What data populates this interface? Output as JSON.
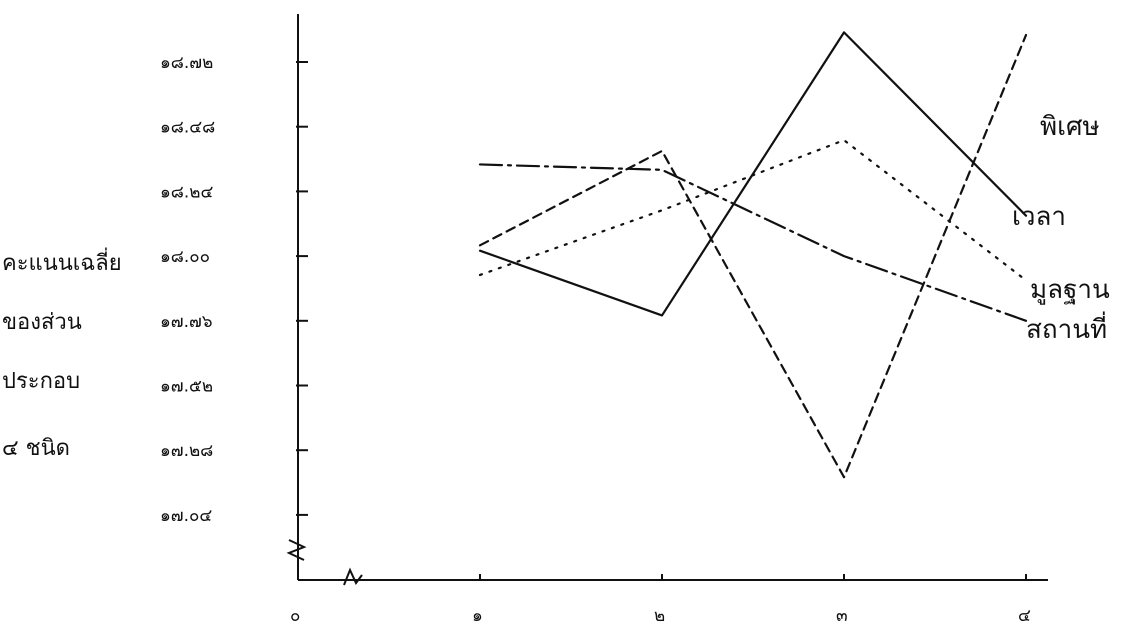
{
  "chart_data": {
    "type": "line",
    "title": "",
    "xlabel": "",
    "ylabel_lines": [
      "คะแนนเฉลี่ย",
      "ของส่วน",
      "ประกอบ",
      "๔ ชนิด"
    ],
    "x": [
      1,
      2,
      3,
      4
    ],
    "xtick_labels": [
      "๐",
      "๑",
      "๒",
      "๓",
      "๔"
    ],
    "xlim": [
      0,
      4
    ],
    "ytick_values": [
      17.04,
      17.28,
      17.52,
      17.76,
      18.0,
      18.24,
      18.48,
      18.72
    ],
    "ytick_labels": [
      "๑๗.๐๔",
      "๑๗.๒๘",
      "๑๗.๕๒",
      "๑๗.๗๖",
      "๑๘.๐๐",
      "๑๘.๒๔",
      "๑๘.๔๘",
      "๑๘.๗๒"
    ],
    "ylim": [
      16.8,
      18.96
    ],
    "grid": false,
    "legend": "inline-right",
    "series": [
      {
        "name": "พิเศษ",
        "style": "dashed",
        "values": [
          18.04,
          18.39,
          17.18,
          18.82
        ]
      },
      {
        "name": "เวลา",
        "style": "solid",
        "values": [
          18.02,
          17.78,
          18.83,
          18.15
        ]
      },
      {
        "name": "มูลฐาน",
        "style": "dotted",
        "values": [
          17.93,
          18.17,
          18.43,
          17.91
        ]
      },
      {
        "name": "สถานที่",
        "style": "dashdot",
        "values": [
          18.34,
          18.32,
          18.0,
          17.76
        ]
      }
    ]
  }
}
